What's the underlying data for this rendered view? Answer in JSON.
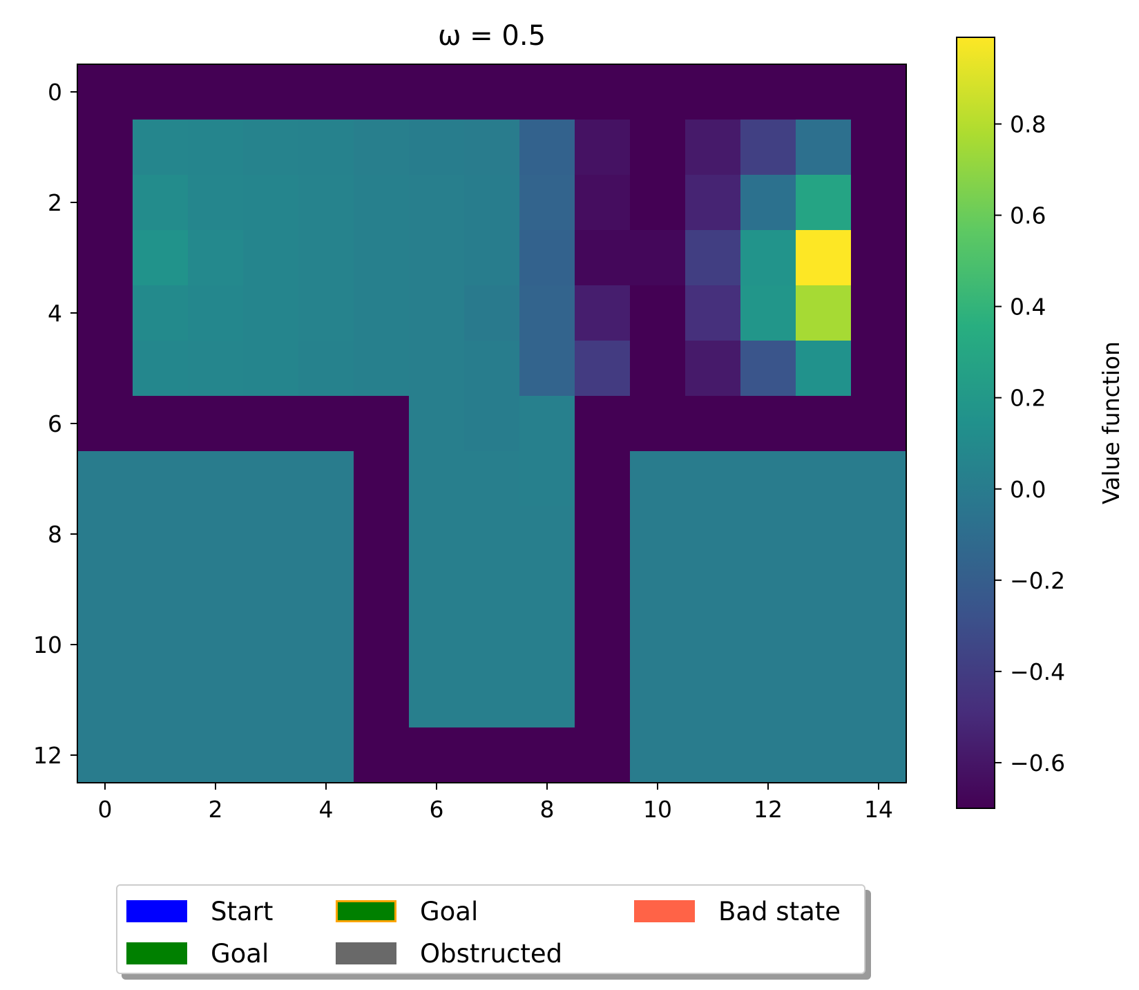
{
  "chart_data": {
    "type": "heatmap",
    "title": "ω = 0.5",
    "xlim": [
      -0.5,
      14.5
    ],
    "ylim": [
      12.5,
      -0.5
    ],
    "xticks": [
      0,
      2,
      4,
      6,
      8,
      10,
      12,
      14
    ],
    "yticks": [
      0,
      2,
      4,
      6,
      8,
      10,
      12
    ],
    "colorbar": {
      "label": "Value function",
      "range": [
        -0.7,
        0.99
      ],
      "ticks": [
        -0.6,
        -0.4,
        -0.2,
        0.0,
        0.2,
        0.4,
        0.6,
        0.8
      ],
      "tick_labels": [
        "−0.6",
        "−0.4",
        "−0.2",
        "0.0",
        "0.2",
        "0.4",
        "0.6",
        "0.8"
      ],
      "colormap": "viridis"
    },
    "values": [
      [
        -0.7,
        -0.7,
        -0.7,
        -0.7,
        -0.7,
        -0.7,
        -0.7,
        -0.7,
        -0.7,
        -0.7,
        -0.7,
        -0.7,
        -0.7,
        -0.7,
        -0.7
      ],
      [
        -0.7,
        0.07,
        0.06,
        0.05,
        0.04,
        0.02,
        0.01,
        0.0,
        -0.17,
        -0.62,
        -0.7,
        -0.58,
        -0.38,
        -0.08,
        -0.7
      ],
      [
        -0.7,
        0.11,
        0.07,
        0.06,
        0.05,
        0.03,
        0.02,
        0.01,
        -0.16,
        -0.64,
        -0.7,
        -0.53,
        -0.07,
        0.28,
        -0.7
      ],
      [
        -0.7,
        0.16,
        0.09,
        0.06,
        0.05,
        0.03,
        0.02,
        0.01,
        -0.17,
        -0.67,
        -0.67,
        -0.39,
        0.17,
        0.99,
        -0.7
      ],
      [
        -0.7,
        0.1,
        0.08,
        0.06,
        0.05,
        0.03,
        0.02,
        -0.01,
        -0.16,
        -0.56,
        -0.7,
        -0.47,
        0.18,
        0.76,
        -0.7
      ],
      [
        -0.7,
        0.08,
        0.07,
        0.06,
        0.04,
        0.03,
        0.02,
        0.01,
        -0.16,
        -0.41,
        -0.7,
        -0.58,
        -0.26,
        0.15,
        -0.7
      ],
      [
        -0.7,
        -0.7,
        -0.7,
        -0.7,
        -0.7,
        -0.7,
        0.02,
        0.01,
        0.03,
        -0.7,
        -0.7,
        -0.7,
        -0.7,
        -0.7,
        -0.7
      ],
      [
        0.0,
        0.0,
        0.0,
        0.0,
        0.0,
        -0.7,
        0.02,
        0.02,
        0.03,
        -0.7,
        0.0,
        0.0,
        0.0,
        0.0,
        0.0
      ],
      [
        0.0,
        0.0,
        0.0,
        0.0,
        0.0,
        -0.7,
        0.02,
        0.02,
        0.02,
        -0.7,
        0.0,
        0.0,
        0.0,
        0.0,
        0.0
      ],
      [
        0.0,
        0.0,
        0.0,
        0.0,
        0.0,
        -0.7,
        0.02,
        0.02,
        0.02,
        -0.7,
        0.0,
        0.0,
        0.0,
        0.0,
        0.0
      ],
      [
        0.0,
        0.0,
        0.0,
        0.0,
        0.0,
        -0.7,
        0.02,
        0.02,
        0.02,
        -0.7,
        0.0,
        0.0,
        0.0,
        0.0,
        0.0
      ],
      [
        0.0,
        0.0,
        0.0,
        0.0,
        0.0,
        -0.7,
        0.02,
        0.02,
        0.02,
        -0.7,
        0.0,
        0.0,
        0.0,
        0.0,
        0.0
      ],
      [
        0.0,
        0.0,
        0.0,
        0.0,
        0.0,
        -0.7,
        -0.7,
        -0.7,
        -0.7,
        -0.7,
        0.0,
        0.0,
        0.0,
        0.0,
        0.0
      ]
    ],
    "legend": {
      "placement": "bottom",
      "entries": [
        {
          "label": "Start",
          "color": "#0000ff",
          "edge": "#0000ff"
        },
        {
          "label": "Goal",
          "color": "#008000",
          "edge": "#008000"
        },
        {
          "label": "Goal",
          "color": "#008000",
          "edge": "#ffa500"
        },
        {
          "label": "Obstructed",
          "color": "#696969",
          "edge": "#696969"
        },
        {
          "label": "Bad state",
          "color": "#ff6347",
          "edge": "#ff6347"
        }
      ]
    }
  }
}
